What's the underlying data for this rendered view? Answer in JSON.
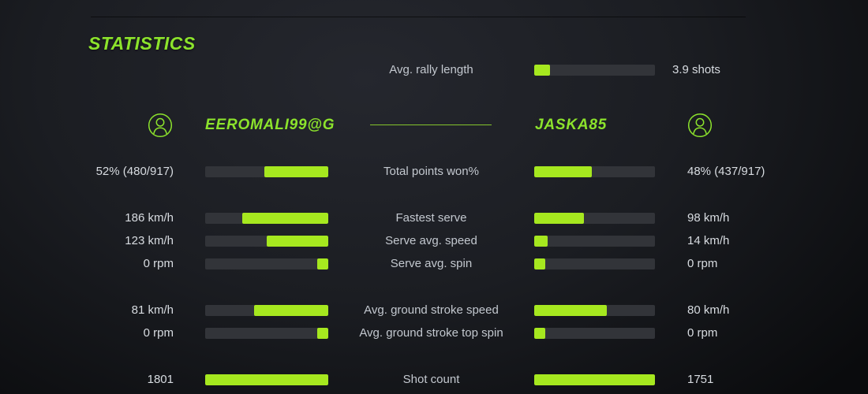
{
  "colors": {
    "accent-text": "#8ce32c",
    "accent-line": "#84c42c",
    "bar-fill": "#a6e81f",
    "bar-track": "#323439",
    "label-text": "#c3c8cf",
    "value-text": "#d8dce1"
  },
  "header": {
    "title": "STATISTICS"
  },
  "rally": {
    "label": "Avg. rally length",
    "value": "3.9 shots",
    "fill_pct": 13
  },
  "players": {
    "left": "EEROMALI99@G",
    "right": "JASKA85"
  },
  "rows": [
    {
      "label": "Total points won%",
      "left_value": "52% (480/917)",
      "right_value": "48% (437/917)",
      "left_pct": 52,
      "right_pct": 48
    },
    {
      "label": "Fastest serve",
      "left_value": "186 km/h",
      "right_value": "98 km/h",
      "left_pct": 70,
      "right_pct": 41
    },
    {
      "label": "Serve avg. speed",
      "left_value": "123 km/h",
      "right_value": "14 km/h",
      "left_pct": 50,
      "right_pct": 11
    },
    {
      "label": "Serve avg. spin",
      "left_value": "0 rpm",
      "right_value": "0 rpm",
      "left_pct": 9,
      "right_pct": 9
    },
    {
      "label": "Avg. ground stroke speed",
      "left_value": "81 km/h",
      "right_value": "80 km/h",
      "left_pct": 60,
      "right_pct": 60
    },
    {
      "label": "Avg. ground stroke top spin",
      "left_value": "0 rpm",
      "right_value": "0 rpm",
      "left_pct": 9,
      "right_pct": 9
    },
    {
      "label": "Shot count",
      "left_value": "1801",
      "right_value": "1751",
      "left_pct": 100,
      "right_pct": 100
    }
  ]
}
